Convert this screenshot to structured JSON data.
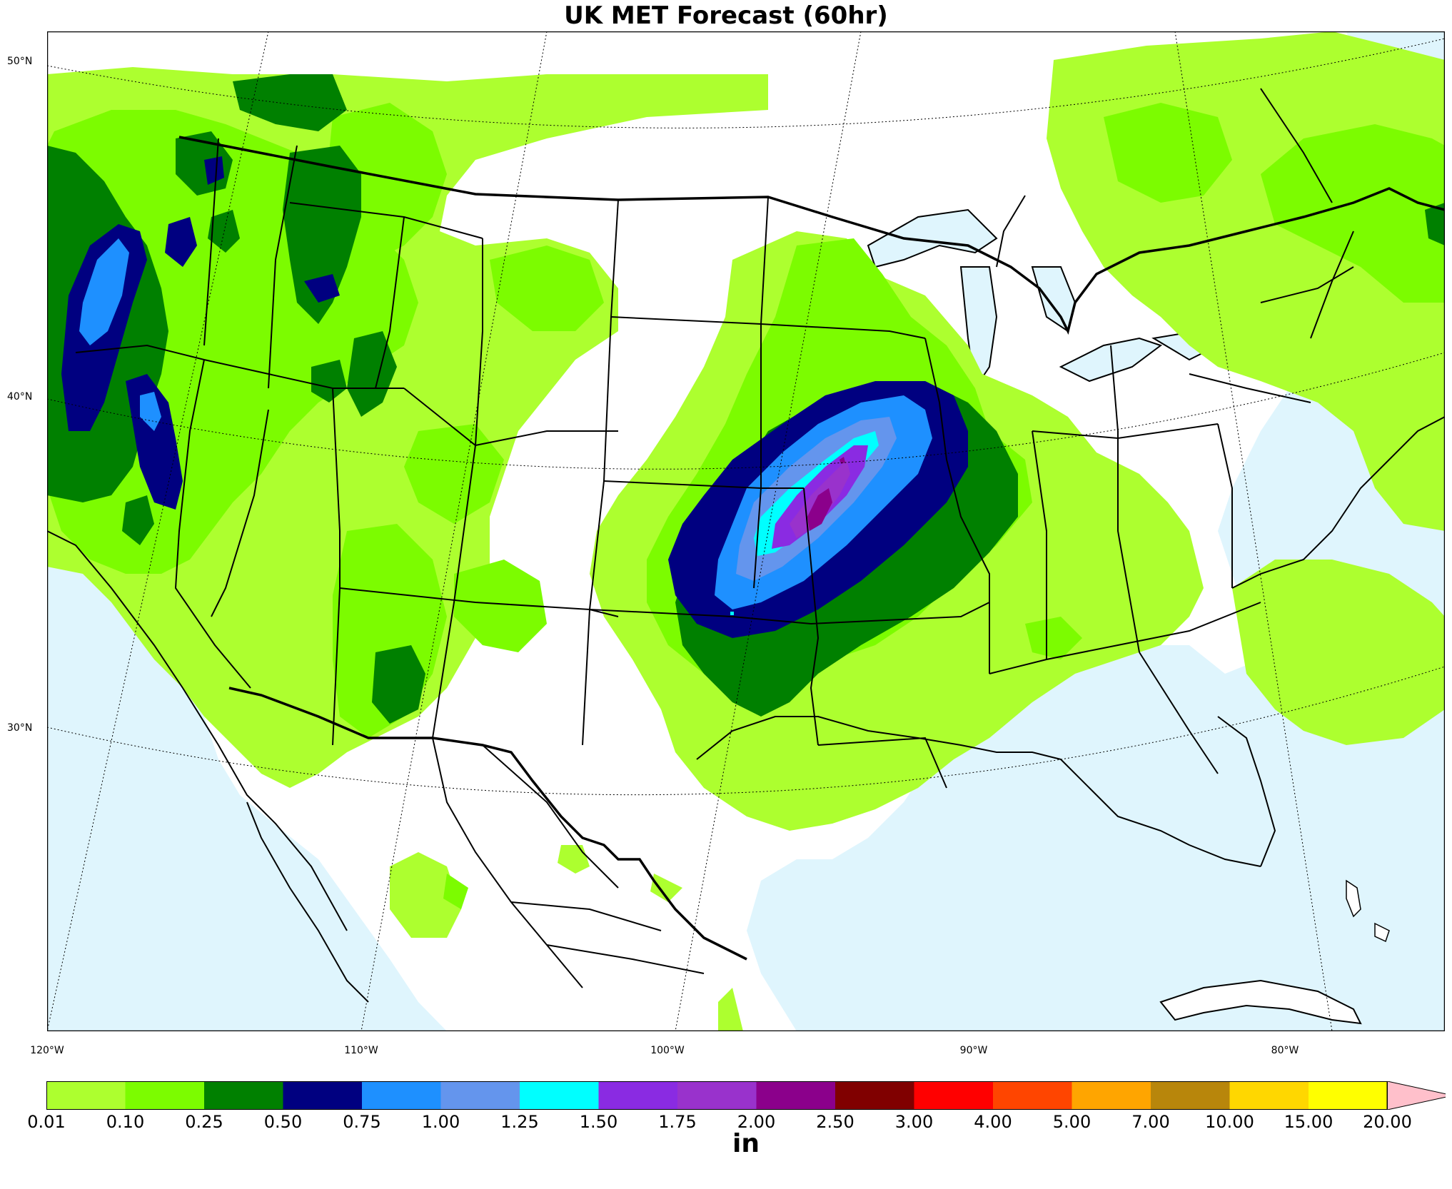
{
  "title": "UK MET Forecast (60hr)",
  "units": "in",
  "lat_labels": [
    "50°N",
    "40°N",
    "30°N"
  ],
  "lon_labels": [
    "120°W",
    "110°W",
    "100°W",
    "90°W",
    "80°W"
  ],
  "colors": {
    "ocean": "#dff5fd",
    "land": "#ffffff"
  },
  "legend": {
    "levels": [
      "0.01",
      "0.10",
      "0.25",
      "0.50",
      "0.75",
      "1.00",
      "1.25",
      "1.50",
      "1.75",
      "2.00",
      "2.50",
      "3.00",
      "4.00",
      "5.00",
      "7.00",
      "10.00",
      "15.00",
      "20.00"
    ],
    "colors": [
      "#adff2f",
      "#7cfc00",
      "#008000",
      "#000080",
      "#1e90ff",
      "#6495ed",
      "#00ffff",
      "#8a2be2",
      "#9932cc",
      "#8b008b",
      "#800000",
      "#ff0000",
      "#ff4500",
      "#ffa500",
      "#b8860b",
      "#ffd700",
      "#ffff00"
    ],
    "extend_color": "#ffc0cb"
  }
}
